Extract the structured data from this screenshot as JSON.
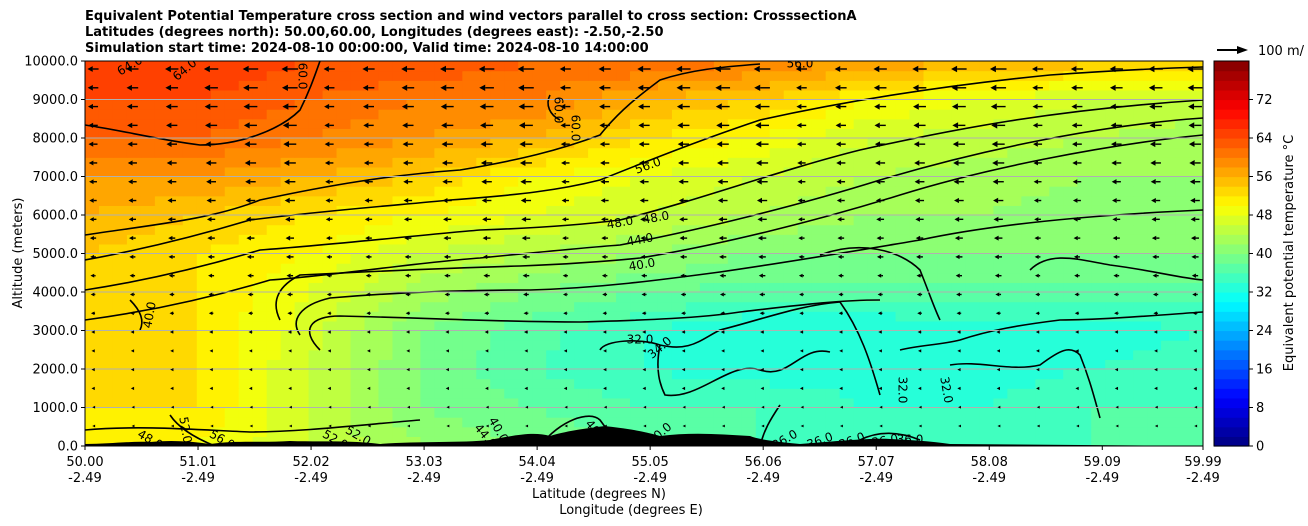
{
  "title": {
    "line1": "Equivalent Potential Temperature cross section and wind vectors parallel to cross section: CrosssectionA",
    "line2": "Latitudes (degrees north): 50.00,60.00, Longitudes (degrees east): -2.50,-2.50",
    "line3": "Simulation start time: 2024-08-10 00:00:00, Valid time: 2024-08-10 14:00:00"
  },
  "chart_data": {
    "type": "heatmap",
    "description_kind": "filled contour cross section with contour lines and wind vectors",
    "ylabel": "Altitude (meters)",
    "xlabel_lat": "Latitude (degrees N)",
    "xlabel_lon": "Longitude (degrees E)",
    "ylim": [
      0,
      10000
    ],
    "y_ticks": [
      "0.0",
      "1000.0",
      "2000.0",
      "3000.0",
      "4000.0",
      "5000.0",
      "6000.0",
      "7000.0",
      "8000.0",
      "9000.0",
      "10000.0"
    ],
    "x_ticks_lat": [
      "50.00",
      "51.01",
      "52.02",
      "53.03",
      "54.04",
      "55.05",
      "56.06",
      "57.07",
      "58.08",
      "59.09",
      "59.99"
    ],
    "x_ticks_lon": [
      "-2.49",
      "-2.49",
      "-2.49",
      "-2.49",
      "-2.49",
      "-2.49",
      "-2.49",
      "-2.49",
      "-2.49",
      "-2.49",
      "-2.49"
    ],
    "grid": "horizontal",
    "colorbar": {
      "label": "Equivalent potential temperature $^\\circ$C",
      "ticks": [
        "0",
        "8",
        "16",
        "24",
        "32",
        "40",
        "48",
        "56",
        "64",
        "72"
      ],
      "range": [
        0,
        80
      ],
      "colormap": "jet"
    },
    "quiver_key": "100 m/",
    "contour_labels": [
      "64.0",
      "64.0",
      "60.0",
      "60.0",
      "60.0",
      "56.0",
      "48.0",
      "48.0",
      "44.0",
      "40.0",
      "56.0",
      "32.0",
      "34.0",
      "32.0",
      "32.0",
      "52.0",
      "48.0",
      "56.0",
      "52.0",
      "52.0",
      "44.0",
      "40.0",
      "36.0",
      "36.0",
      "36.0",
      "36.0",
      "36.0",
      "40.0",
      "40.0",
      "40.0"
    ],
    "theta_e_samples": {
      "latitudes": [
        50.0,
        51.0,
        52.0,
        53.0,
        54.0,
        55.0,
        56.0,
        57.0,
        58.0,
        59.0,
        60.0
      ],
      "altitudes": [
        0,
        1000,
        2000,
        3000,
        4000,
        5000,
        6000,
        7000,
        8000,
        9000,
        10000
      ],
      "values": [
        [
          50,
          50,
          46,
          42,
          40,
          38,
          36,
          36,
          36,
          36,
          36
        ],
        [
          52,
          52,
          46,
          40,
          38,
          36,
          36,
          34,
          34,
          36,
          36
        ],
        [
          54,
          52,
          46,
          40,
          36,
          34,
          33,
          33,
          33,
          34,
          35
        ],
        [
          54,
          52,
          47,
          40,
          37,
          34,
          32,
          32,
          33,
          33,
          34
        ],
        [
          54,
          52,
          48,
          43,
          40,
          38,
          37,
          37,
          37,
          37,
          37
        ],
        [
          54,
          52,
          50,
          46,
          44,
          42,
          40,
          40,
          40,
          40,
          40
        ],
        [
          56,
          54,
          52,
          50,
          48,
          46,
          44,
          42,
          42,
          41,
          41
        ],
        [
          58,
          58,
          56,
          54,
          50,
          48,
          46,
          44,
          43,
          42,
          42
        ],
        [
          62,
          62,
          60,
          58,
          56,
          52,
          50,
          46,
          45,
          44,
          43
        ],
        [
          64,
          64,
          62,
          60,
          60,
          56,
          54,
          50,
          48,
          46,
          45
        ],
        [
          66,
          66,
          64,
          64,
          62,
          62,
          60,
          58,
          56,
          55,
          54
        ]
      ]
    }
  }
}
